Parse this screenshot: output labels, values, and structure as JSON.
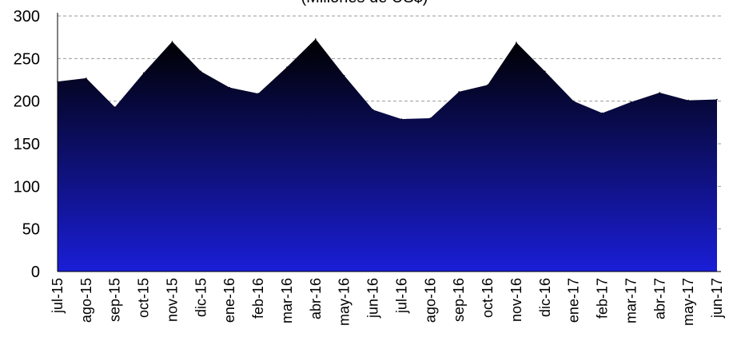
{
  "chart_data": {
    "type": "area",
    "subtitle": "(Millones de US$)",
    "categories": [
      "jul-15",
      "ago-15",
      "sep-15",
      "oct-15",
      "nov-15",
      "dic-15",
      "ene-16",
      "feb-16",
      "mar-16",
      "abr-16",
      "may-16",
      "jun-16",
      "jul-16",
      "ago-16",
      "sep-16",
      "oct-16",
      "nov-16",
      "dic-16",
      "ene-17",
      "feb-17",
      "mar-17",
      "abr-17",
      "may-17",
      "jun-17"
    ],
    "series": [
      {
        "values": [
          223,
          227,
          193,
          233,
          270,
          235,
          216,
          209,
          240,
          273,
          230,
          190,
          179,
          180,
          211,
          219,
          269,
          235,
          200,
          186,
          199,
          210,
          201,
          202
        ]
      }
    ],
    "ylim": [
      0,
      300
    ],
    "yticks": [
      0,
      50,
      100,
      150,
      200,
      250,
      300
    ],
    "grid": "dashed horizontal",
    "colors": {
      "fill_top": "#000000",
      "fill_bottom": "#1a1ed6",
      "grid": "#999999",
      "axis": "#000000"
    }
  }
}
